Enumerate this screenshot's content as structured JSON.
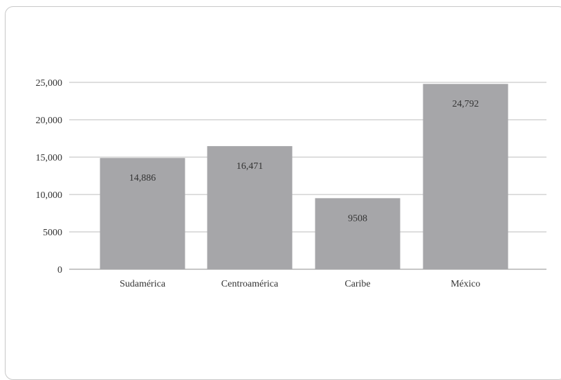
{
  "chart_data": {
    "type": "bar",
    "categories": [
      "Sudamérica",
      "Centroamérica",
      "Caribe",
      "México"
    ],
    "values": [
      14886,
      16471,
      9508,
      24792
    ],
    "value_labels": [
      "14,886",
      "16,471",
      "9508",
      "24,792"
    ],
    "yticks": [
      0,
      5000,
      10000,
      15000,
      20000,
      25000
    ],
    "ytick_labels": [
      "0",
      "5000",
      "10,000",
      "15,000",
      "20,000",
      "25,000"
    ],
    "ylim": [
      0,
      25000
    ],
    "grid": true,
    "legend": "none",
    "title": "",
    "xlabel": "",
    "ylabel": "",
    "colors": {
      "bar": "#a6a6a9",
      "grid": "#bdbdbd",
      "axis": "#8c8c8c",
      "frame": "#c8c8c8"
    }
  }
}
